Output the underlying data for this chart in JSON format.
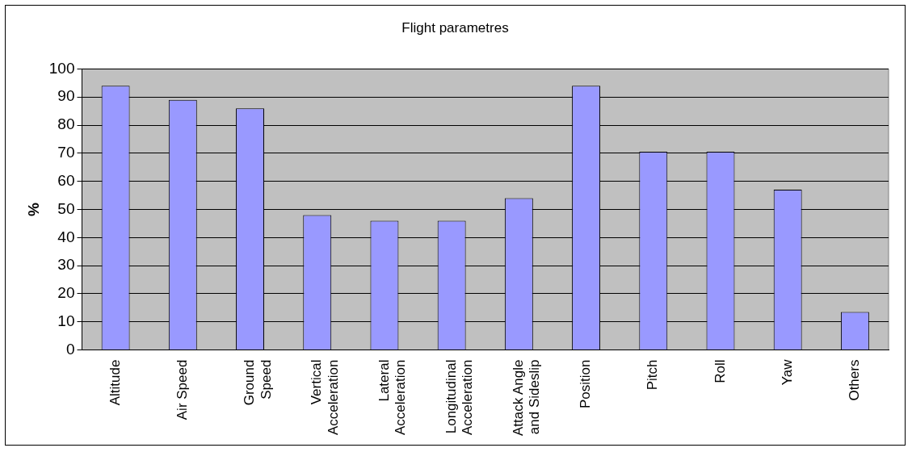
{
  "chart_data": {
    "type": "bar",
    "title": "Flight parametres",
    "ylabel": "%",
    "categories": [
      "Altitude",
      "Air Speed",
      "Ground\nSpeed",
      "Vertical\nAcceleration",
      "Lateral\nAcceleration",
      "Longitudinal\nAcceleration",
      "Attack Angle\nand Sideslip",
      "Position",
      "Pitch",
      "Roll",
      "Yaw",
      "Others"
    ],
    "values": [
      94,
      89,
      86,
      48,
      46,
      46,
      54,
      94,
      70.5,
      70.5,
      57,
      13.5
    ],
    "color": "#9999ff",
    "ylim": [
      0,
      100
    ],
    "yticks": [
      0,
      10,
      20,
      30,
      40,
      50,
      60,
      70,
      80,
      90,
      100
    ],
    "grid": "y",
    "legend": false
  }
}
